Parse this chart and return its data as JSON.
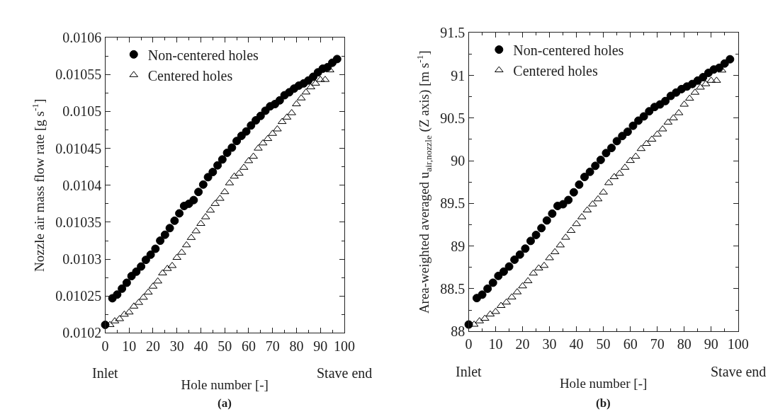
{
  "chart_data": [
    {
      "type": "scatter",
      "xlabel": "Hole number [-]",
      "ylabel": "Nozzle air mass flow rate [g s$^{-1}$]",
      "xlim": [
        0,
        100
      ],
      "xticks": [
        0,
        10,
        20,
        30,
        40,
        50,
        60,
        70,
        80,
        90,
        100
      ],
      "ylim": [
        0.0102,
        0.0106
      ],
      "yticks": [
        0.0102,
        0.01025,
        0.0103,
        0.01035,
        0.0104,
        0.01045,
        0.0105,
        0.01055,
        0.0106
      ],
      "legend": "top left",
      "grid": false,
      "annotations": [
        "Inlet",
        "Stave end",
        "(a)"
      ],
      "series": [
        {
          "name": "Non-centered holes",
          "color": "#000000",
          "marker": "circle",
          "x": [
            0,
            3,
            5,
            7,
            9,
            11,
            13,
            15,
            17,
            19,
            21,
            23,
            25,
            27,
            29,
            31,
            33,
            35,
            37,
            39,
            41,
            43,
            45,
            47,
            49,
            51,
            53,
            55,
            57,
            59,
            61,
            63,
            65,
            67,
            69,
            71,
            73,
            75,
            77,
            79,
            81,
            83,
            85,
            87,
            89,
            91,
            93,
            95,
            97
          ],
          "values": [
            0.010211,
            0.010247,
            0.010252,
            0.01026,
            0.010268,
            0.010277,
            0.010283,
            0.01029,
            0.010299,
            0.010306,
            0.010314,
            0.010325,
            0.010333,
            0.010342,
            0.010352,
            0.010362,
            0.010372,
            0.010375,
            0.01038,
            0.010391,
            0.010401,
            0.010411,
            0.010418,
            0.010427,
            0.010435,
            0.010444,
            0.010451,
            0.01046,
            0.010467,
            0.010473,
            0.010481,
            0.010488,
            0.010494,
            0.010501,
            0.010507,
            0.01051,
            0.010515,
            0.010522,
            0.010526,
            0.010531,
            0.010535,
            0.010538,
            0.010542,
            0.010547,
            0.010553,
            0.010558,
            0.01056,
            0.010566,
            0.010571
          ]
        },
        {
          "name": "Centered holes",
          "color": "#000000",
          "marker": "triangle",
          "x": [
            2,
            4,
            6,
            8,
            10,
            12,
            14,
            16,
            18,
            20,
            22,
            24,
            26,
            28,
            30,
            32,
            34,
            36,
            38,
            40,
            42,
            44,
            46,
            48,
            50,
            52,
            54,
            56,
            58,
            60,
            62,
            64,
            66,
            68,
            70,
            72,
            74,
            76,
            78,
            80,
            82,
            84,
            86,
            88,
            90,
            92,
            94
          ],
          "values": [
            0.010211,
            0.010216,
            0.010219,
            0.010225,
            0.010228,
            0.010236,
            0.010241,
            0.010248,
            0.010255,
            0.010263,
            0.01027,
            0.010281,
            0.010287,
            0.010291,
            0.010302,
            0.010309,
            0.010319,
            0.010329,
            0.010338,
            0.010348,
            0.010357,
            0.010366,
            0.010375,
            0.010382,
            0.010391,
            0.010403,
            0.010412,
            0.010416,
            0.010424,
            0.010433,
            0.010439,
            0.01045,
            0.010457,
            0.010463,
            0.01047,
            0.010476,
            0.010486,
            0.010492,
            0.010498,
            0.01051,
            0.010518,
            0.010526,
            0.010533,
            0.010538,
            0.010543,
            0.010543,
            0.010556
          ]
        }
      ]
    },
    {
      "type": "scatter",
      "xlabel": "Hole number [-]",
      "ylabel": "Area-weighted averaged u$_{air,nozzle}$ (Z axis) [m s$^{-1}$]",
      "xlim": [
        0,
        100
      ],
      "xticks": [
        0,
        10,
        20,
        30,
        40,
        50,
        60,
        70,
        80,
        90,
        100
      ],
      "ylim": [
        88,
        91.5
      ],
      "yticks": [
        88,
        88.5,
        89,
        89.5,
        90,
        90.5,
        91,
        91.5
      ],
      "legend": "top left",
      "grid": false,
      "annotations": [
        "Inlet",
        "Stave end",
        "(b)"
      ],
      "series": [
        {
          "name": "Non-centered holes",
          "color": "#000000",
          "marker": "circle",
          "x": [
            0,
            3,
            5,
            7,
            9,
            11,
            13,
            15,
            17,
            19,
            21,
            23,
            25,
            27,
            29,
            31,
            33,
            35,
            37,
            39,
            41,
            43,
            45,
            47,
            49,
            51,
            53,
            55,
            57,
            59,
            61,
            63,
            65,
            67,
            69,
            71,
            73,
            75,
            77,
            79,
            81,
            83,
            85,
            87,
            89,
            91,
            93,
            95,
            97
          ],
          "values": [
            88.08,
            88.39,
            88.43,
            88.5,
            88.57,
            88.65,
            88.7,
            88.76,
            88.84,
            88.9,
            88.97,
            89.06,
            89.13,
            89.21,
            89.3,
            89.38,
            89.47,
            89.49,
            89.54,
            89.63,
            89.72,
            89.81,
            89.87,
            89.94,
            90.01,
            90.09,
            90.15,
            90.23,
            90.29,
            90.34,
            90.41,
            90.47,
            90.52,
            90.58,
            90.63,
            90.66,
            90.7,
            90.76,
            90.8,
            90.84,
            90.87,
            90.9,
            90.94,
            90.98,
            91.03,
            91.07,
            91.09,
            91.14,
            91.19
          ]
        },
        {
          "name": "Centered holes",
          "color": "#000000",
          "marker": "triangle",
          "x": [
            2,
            4,
            6,
            8,
            10,
            12,
            14,
            16,
            18,
            20,
            22,
            24,
            26,
            28,
            30,
            32,
            34,
            36,
            38,
            40,
            42,
            44,
            46,
            48,
            50,
            52,
            54,
            56,
            58,
            60,
            62,
            64,
            66,
            68,
            70,
            72,
            74,
            76,
            78,
            80,
            82,
            84,
            86,
            88,
            90,
            92,
            94
          ],
          "values": [
            88.08,
            88.12,
            88.15,
            88.2,
            88.23,
            88.3,
            88.34,
            88.4,
            88.46,
            88.53,
            88.59,
            88.68,
            88.74,
            88.77,
            88.86,
            88.93,
            89.01,
            89.1,
            89.18,
            89.26,
            89.34,
            89.42,
            89.49,
            89.55,
            89.63,
            89.74,
            89.81,
            89.85,
            89.92,
            90.0,
            90.05,
            90.14,
            90.2,
            90.25,
            90.31,
            90.37,
            90.45,
            90.5,
            90.56,
            90.66,
            90.73,
            90.8,
            90.86,
            90.9,
            90.94,
            90.94,
            91.06
          ]
        }
      ]
    }
  ]
}
